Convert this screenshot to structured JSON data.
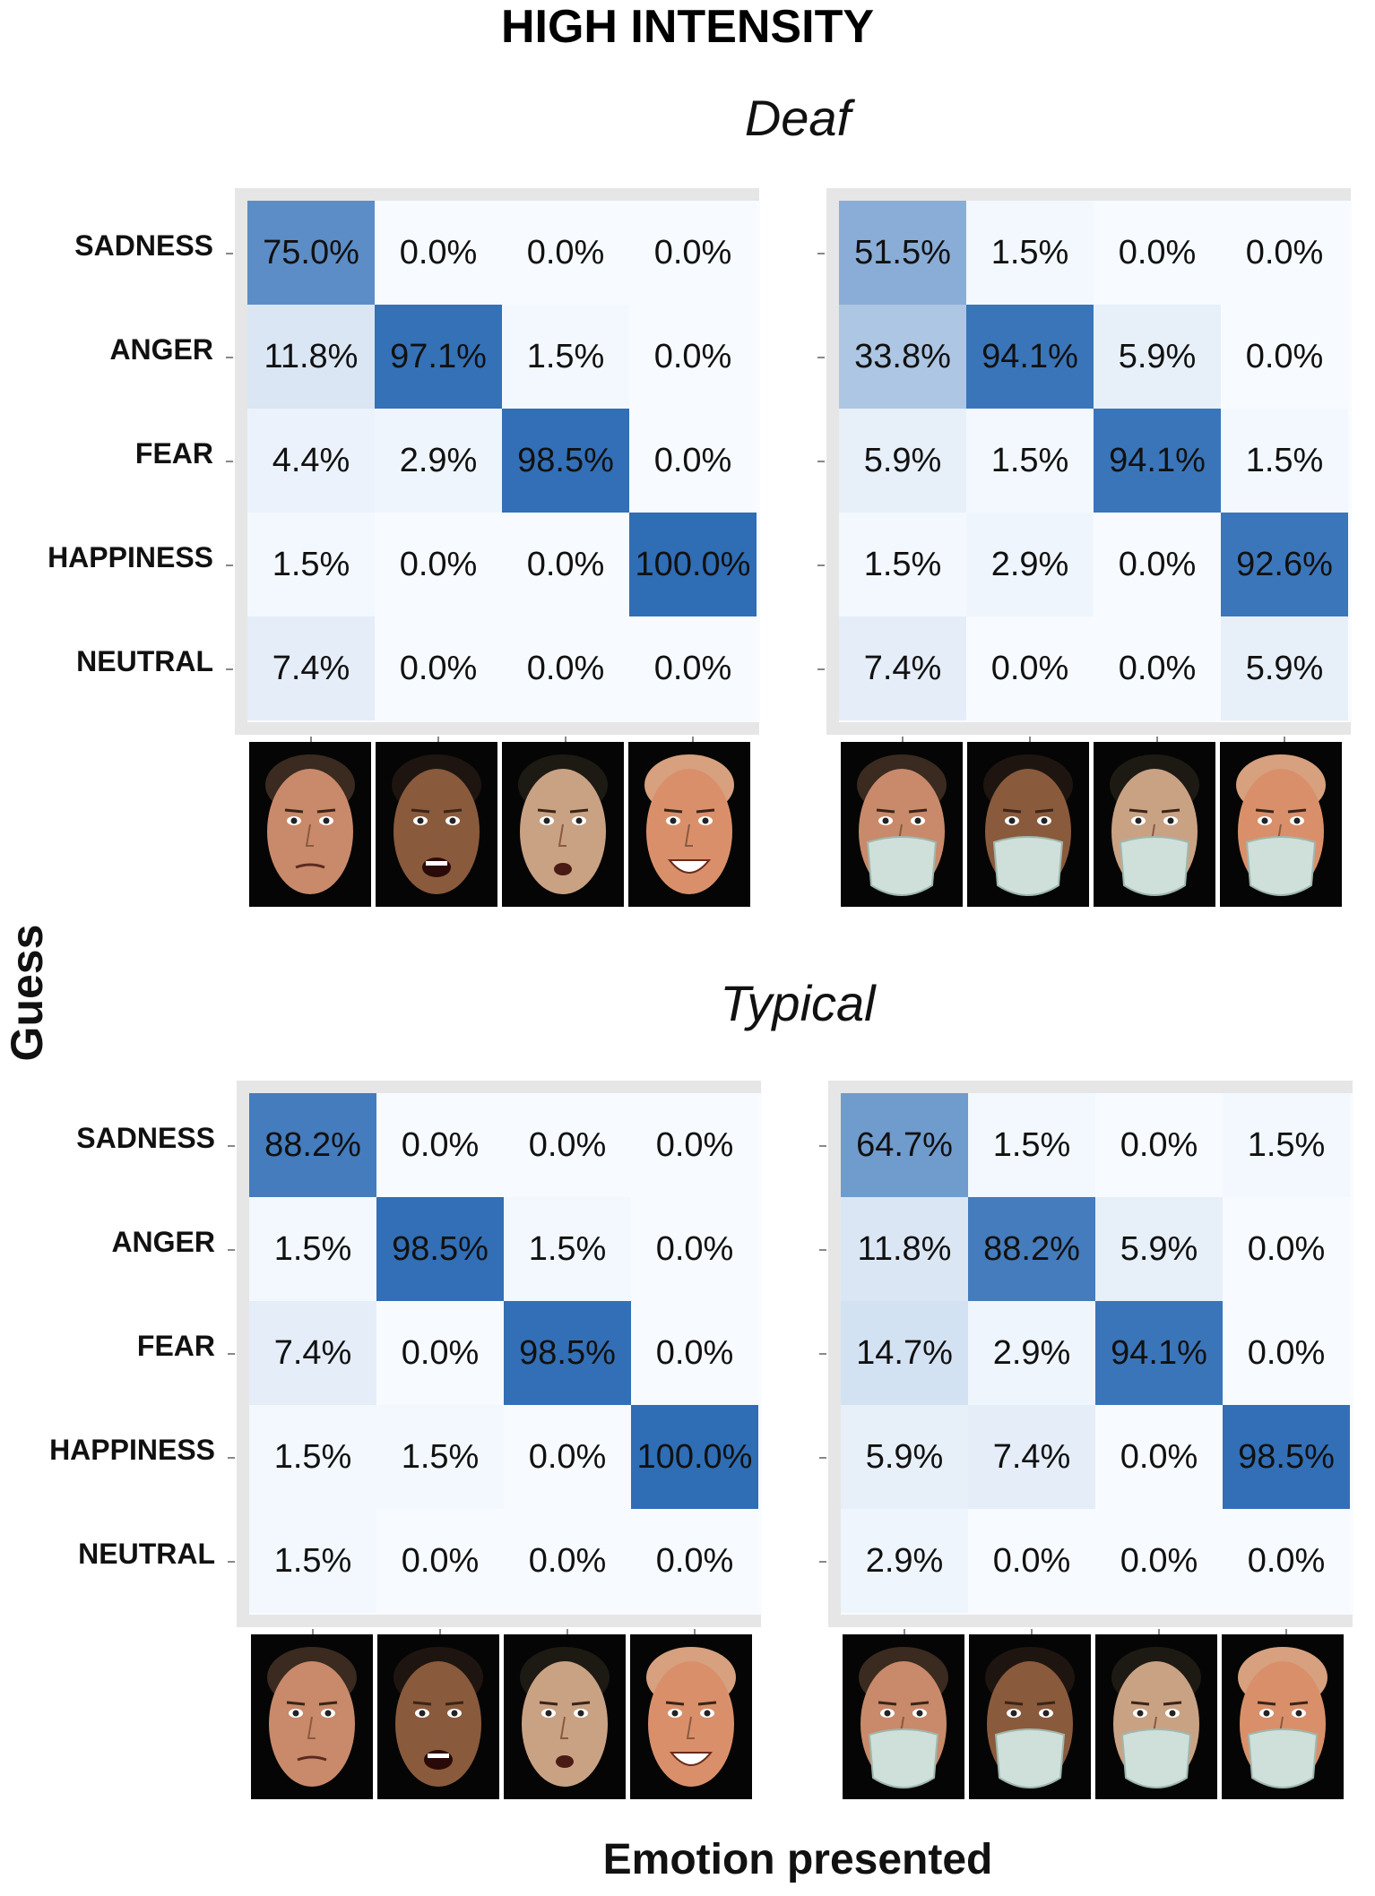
{
  "title": "HIGH INTENSITY",
  "groups": [
    {
      "label": "Deaf"
    },
    {
      "label": "Typical"
    }
  ],
  "ylabel": "Guess",
  "xlabel": "Emotion presented",
  "chart_data": [
    {
      "type": "heatmap",
      "title": "Deaf - unmasked faces",
      "rows": [
        "SADNESS",
        "ANGER",
        "FEAR",
        "HAPPINESS",
        "NEUTRAL"
      ],
      "columns": [
        "Sadness face",
        "Anger face",
        "Fear face",
        "Happiness face"
      ],
      "values": [
        [
          75.0,
          0.0,
          0.0,
          0.0
        ],
        [
          11.8,
          97.1,
          1.5,
          0.0
        ],
        [
          4.4,
          2.9,
          98.5,
          0.0
        ],
        [
          1.5,
          0.0,
          0.0,
          100.0
        ],
        [
          7.4,
          0.0,
          0.0,
          0.0
        ]
      ],
      "unit": "%",
      "masked": false
    },
    {
      "type": "heatmap",
      "title": "Deaf - masked faces",
      "rows": [
        "SADNESS",
        "ANGER",
        "FEAR",
        "HAPPINESS",
        "NEUTRAL"
      ],
      "columns": [
        "Sadness face",
        "Anger face",
        "Fear face",
        "Happiness face"
      ],
      "values": [
        [
          51.5,
          1.5,
          0.0,
          0.0
        ],
        [
          33.8,
          94.1,
          5.9,
          0.0
        ],
        [
          5.9,
          1.5,
          94.1,
          1.5
        ],
        [
          1.5,
          2.9,
          0.0,
          92.6
        ],
        [
          7.4,
          0.0,
          0.0,
          5.9
        ]
      ],
      "unit": "%",
      "masked": true
    },
    {
      "type": "heatmap",
      "title": "Typical - unmasked faces",
      "rows": [
        "SADNESS",
        "ANGER",
        "FEAR",
        "HAPPINESS",
        "NEUTRAL"
      ],
      "columns": [
        "Sadness face",
        "Anger face",
        "Fear face",
        "Happiness face"
      ],
      "values": [
        [
          88.2,
          0.0,
          0.0,
          0.0
        ],
        [
          1.5,
          98.5,
          1.5,
          0.0
        ],
        [
          7.4,
          0.0,
          98.5,
          0.0
        ],
        [
          1.5,
          1.5,
          0.0,
          100.0
        ],
        [
          1.5,
          0.0,
          0.0,
          0.0
        ]
      ],
      "unit": "%",
      "masked": false
    },
    {
      "type": "heatmap",
      "title": "Typical - masked faces",
      "rows": [
        "SADNESS",
        "ANGER",
        "FEAR",
        "HAPPINESS",
        "NEUTRAL"
      ],
      "columns": [
        "Sadness face",
        "Anger face",
        "Fear face",
        "Happiness face"
      ],
      "values": [
        [
          64.7,
          1.5,
          0.0,
          1.5
        ],
        [
          11.8,
          88.2,
          5.9,
          0.0
        ],
        [
          14.7,
          2.9,
          94.1,
          0.0
        ],
        [
          5.9,
          7.4,
          0.0,
          98.5
        ],
        [
          2.9,
          0.0,
          0.0,
          0.0
        ]
      ],
      "unit": "%",
      "masked": true
    }
  ],
  "colors": {
    "low": "#f7fbff",
    "high": "#2f6db5",
    "panel": "#e6e6e6"
  }
}
